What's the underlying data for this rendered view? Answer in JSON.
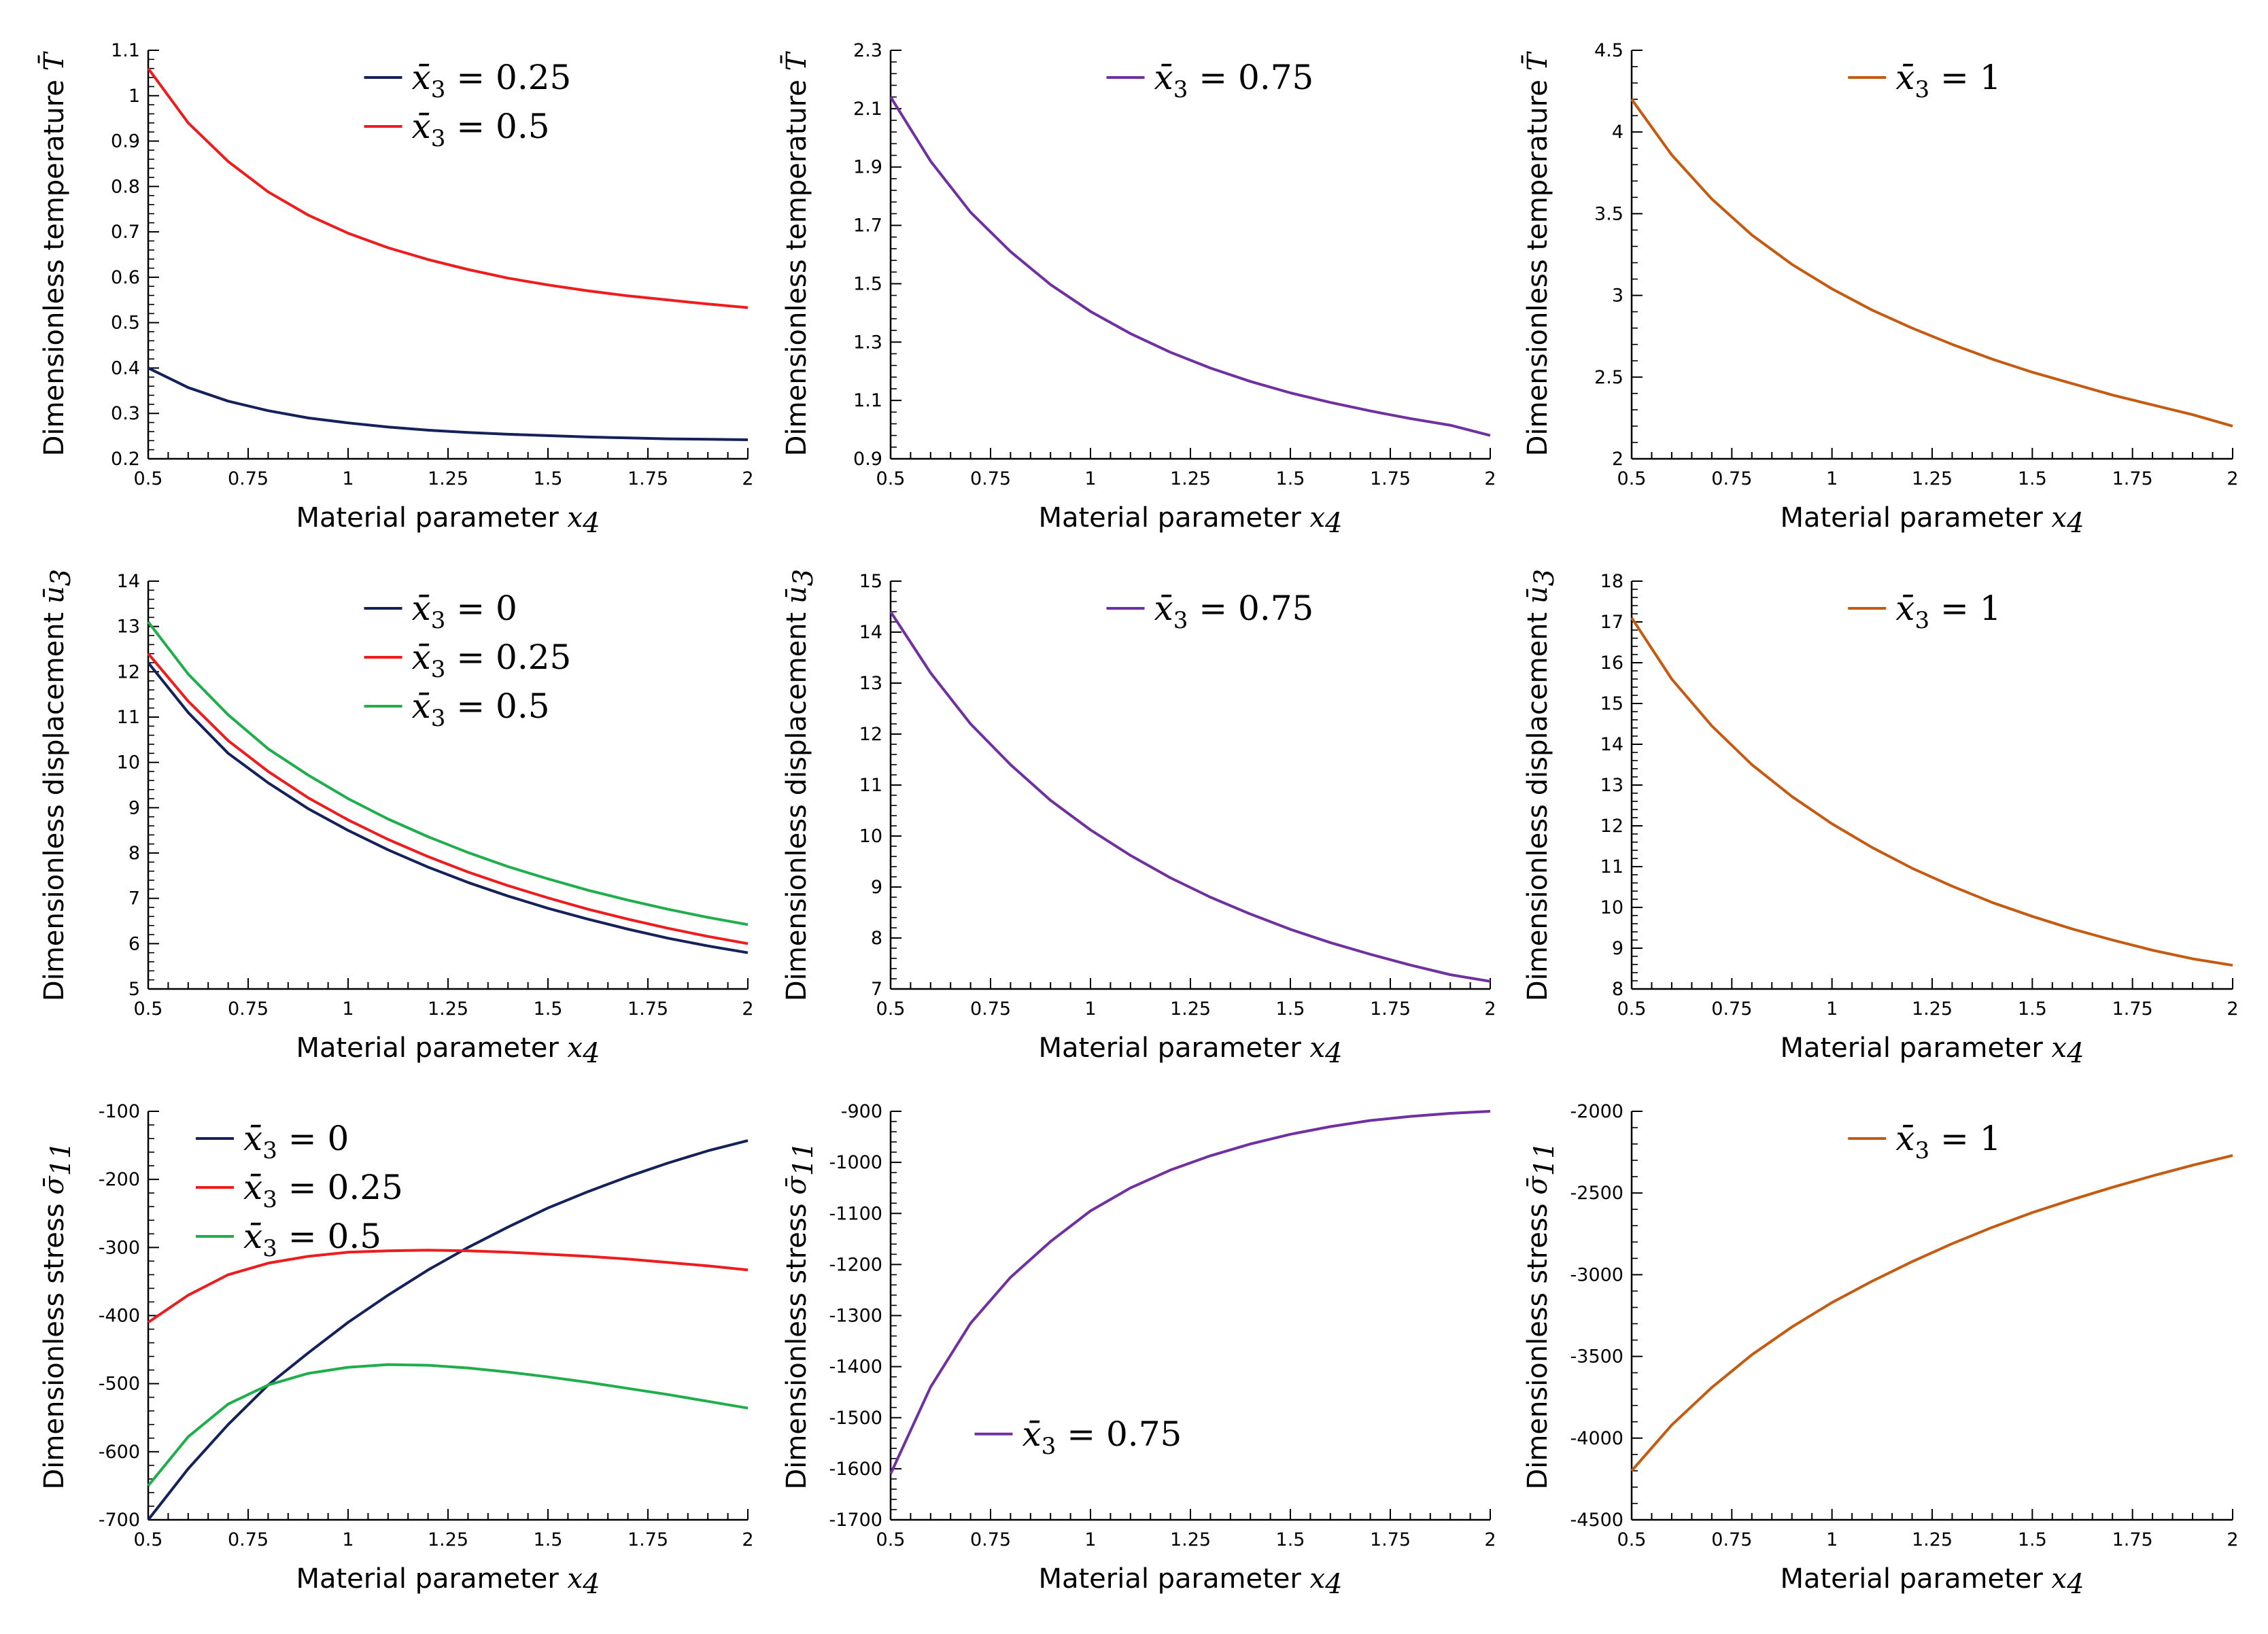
{
  "colors": {
    "navy": "#14215b",
    "red": "#ee1c1c",
    "green": "#1fae4b",
    "purple": "#7030a0",
    "orange": "#c55a11"
  },
  "xlabel": "Material parameter",
  "xsym": "x",
  "xsub": "4",
  "charts": [
    {
      "type": "line",
      "ylabel": "Dimensionless temperature",
      "ysym": "T̄",
      "ysub": "",
      "ylim": [
        0.2,
        1.1
      ],
      "yticks": [
        "0.2",
        "0.3",
        "0.4",
        "0.5",
        "0.6",
        "0.7",
        "0.8",
        "0.9",
        "1",
        "1.1"
      ],
      "xlim": [
        0.5,
        2
      ],
      "xticks": [
        "0.5",
        "0.75",
        "1",
        "1.25",
        "1.5",
        "1.75",
        "2"
      ],
      "x": [
        0.5,
        0.6,
        0.7,
        0.8,
        0.9,
        1.0,
        1.1,
        1.2,
        1.3,
        1.4,
        1.5,
        1.6,
        1.7,
        1.8,
        1.9,
        2.0
      ],
      "series": [
        {
          "name": "x̄₃ = 0.25",
          "label_var": "x̄",
          "label_sub": "3",
          "label_val": " = 0.25",
          "color": "#14215b",
          "values": [
            0.4,
            0.357,
            0.327,
            0.306,
            0.29,
            0.279,
            0.27,
            0.263,
            0.258,
            0.254,
            0.251,
            0.248,
            0.246,
            0.244,
            0.243,
            0.242
          ]
        },
        {
          "name": "x̄₃ = 0.5",
          "label_var": "x̄",
          "label_sub": "3",
          "label_val": " = 0.5",
          "color": "#ee1c1c",
          "values": [
            1.06,
            0.94,
            0.855,
            0.788,
            0.737,
            0.697,
            0.665,
            0.639,
            0.617,
            0.598,
            0.583,
            0.57,
            0.559,
            0.55,
            0.541,
            0.533
          ]
        }
      ],
      "legend": "top-center"
    },
    {
      "type": "line",
      "ylabel": "Dimensionless temperature",
      "ysym": "T̄",
      "ysub": "",
      "ylim": [
        0.9,
        2.3
      ],
      "yticks": [
        "0.9",
        "1.1",
        "1.3",
        "1.5",
        "1.7",
        "1.9",
        "2.1",
        "2.3"
      ],
      "xlim": [
        0.5,
        2
      ],
      "xticks": [
        "0.5",
        "0.75",
        "1",
        "1.25",
        "1.5",
        "1.75",
        "2"
      ],
      "x": [
        0.5,
        0.6,
        0.7,
        0.8,
        0.9,
        1.0,
        1.1,
        1.2,
        1.3,
        1.4,
        1.5,
        1.6,
        1.7,
        1.8,
        1.9,
        2.0
      ],
      "series": [
        {
          "name": "x̄₃ = 0.75",
          "label_var": "x̄",
          "label_sub": "3",
          "label_val": " = 0.75",
          "color": "#7030a0",
          "values": [
            2.14,
            1.92,
            1.745,
            1.61,
            1.497,
            1.405,
            1.329,
            1.265,
            1.211,
            1.165,
            1.126,
            1.093,
            1.064,
            1.038,
            1.015,
            0.98
          ]
        }
      ],
      "legend": "top-center"
    },
    {
      "type": "line",
      "ylabel": "Dimensionless temperature",
      "ysym": "T̄",
      "ysub": "",
      "ylim": [
        2,
        4.5
      ],
      "yticks": [
        "2",
        "2.5",
        "3",
        "3.5",
        "4",
        "4.5"
      ],
      "xlim": [
        0.5,
        2
      ],
      "xticks": [
        "0.5",
        "0.75",
        "1",
        "1.25",
        "1.5",
        "1.75",
        "2"
      ],
      "x": [
        0.5,
        0.6,
        0.7,
        0.8,
        0.9,
        1.0,
        1.1,
        1.2,
        1.3,
        1.4,
        1.5,
        1.6,
        1.7,
        1.8,
        1.9,
        2.0
      ],
      "series": [
        {
          "name": "x̄₃ = 1",
          "label_var": "x̄",
          "label_sub": "3",
          "label_val": " = 1",
          "color": "#c55a11",
          "values": [
            4.2,
            3.86,
            3.59,
            3.37,
            3.19,
            3.04,
            2.91,
            2.8,
            2.7,
            2.61,
            2.53,
            2.46,
            2.39,
            2.33,
            2.27,
            2.2
          ]
        }
      ],
      "legend": "top-center"
    },
    {
      "type": "line",
      "ylabel": "Dimensionless displacement",
      "ysym": "ū",
      "ysub": "3",
      "ylim": [
        5,
        14
      ],
      "yticks": [
        "5",
        "6",
        "7",
        "8",
        "9",
        "10",
        "11",
        "12",
        "13",
        "14"
      ],
      "xlim": [
        0.5,
        2
      ],
      "xticks": [
        "0.5",
        "0.75",
        "1",
        "1.25",
        "1.5",
        "1.75",
        "2"
      ],
      "x": [
        0.5,
        0.6,
        0.7,
        0.8,
        0.9,
        1.0,
        1.1,
        1.2,
        1.3,
        1.4,
        1.5,
        1.6,
        1.7,
        1.8,
        1.9,
        2.0
      ],
      "series": [
        {
          "name": "x̄₃ = 0",
          "label_var": "x̄",
          "label_sub": "3",
          "label_val": " = 0",
          "color": "#14215b",
          "values": [
            12.2,
            11.1,
            10.2,
            9.55,
            8.98,
            8.5,
            8.07,
            7.69,
            7.35,
            7.05,
            6.78,
            6.54,
            6.32,
            6.12,
            5.95,
            5.8
          ]
        },
        {
          "name": "x̄₃ = 0.25",
          "label_var": "x̄",
          "label_sub": "3",
          "label_val": " = 0.25",
          "color": "#ee1c1c",
          "values": [
            12.4,
            11.35,
            10.48,
            9.8,
            9.22,
            8.73,
            8.3,
            7.92,
            7.58,
            7.28,
            7.01,
            6.76,
            6.54,
            6.34,
            6.16,
            6.0
          ]
        },
        {
          "name": "x̄₃ = 0.5",
          "label_var": "x̄",
          "label_sub": "3",
          "label_val": " = 0.5",
          "color": "#1fae4b",
          "values": [
            13.1,
            11.95,
            11.05,
            10.3,
            9.72,
            9.2,
            8.75,
            8.36,
            8.01,
            7.7,
            7.43,
            7.18,
            6.96,
            6.76,
            6.58,
            6.42
          ]
        }
      ],
      "legend": "top-center"
    },
    {
      "type": "line",
      "ylabel": "Dimensionless displacement",
      "ysym": "ū",
      "ysub": "3",
      "ylim": [
        7,
        15
      ],
      "yticks": [
        "7",
        "8",
        "9",
        "10",
        "11",
        "12",
        "13",
        "14",
        "15"
      ],
      "xlim": [
        0.5,
        2
      ],
      "xticks": [
        "0.5",
        "0.75",
        "1",
        "1.25",
        "1.5",
        "1.75",
        "2"
      ],
      "x": [
        0.5,
        0.6,
        0.7,
        0.8,
        0.9,
        1.0,
        1.1,
        1.2,
        1.3,
        1.4,
        1.5,
        1.6,
        1.7,
        1.8,
        1.9,
        2.0
      ],
      "series": [
        {
          "name": "x̄₃ = 0.75",
          "label_var": "x̄",
          "label_sub": "3",
          "label_val": " = 0.75",
          "color": "#7030a0",
          "values": [
            14.4,
            13.2,
            12.2,
            11.4,
            10.7,
            10.12,
            9.62,
            9.18,
            8.8,
            8.47,
            8.17,
            7.91,
            7.68,
            7.47,
            7.28,
            7.15
          ]
        }
      ],
      "legend": "top-center"
    },
    {
      "type": "line",
      "ylabel": "Dimensionless displacement",
      "ysym": "ū",
      "ysub": "3",
      "ylim": [
        8,
        18
      ],
      "yticks": [
        "8",
        "9",
        "10",
        "11",
        "12",
        "13",
        "14",
        "15",
        "16",
        "17",
        "18"
      ],
      "xlim": [
        0.5,
        2
      ],
      "xticks": [
        "0.5",
        "0.75",
        "1",
        "1.25",
        "1.5",
        "1.75",
        "2"
      ],
      "x": [
        0.5,
        0.6,
        0.7,
        0.8,
        0.9,
        1.0,
        1.1,
        1.2,
        1.3,
        1.4,
        1.5,
        1.6,
        1.7,
        1.8,
        1.9,
        2.0
      ],
      "series": [
        {
          "name": "x̄₃ = 1",
          "label_var": "x̄",
          "label_sub": "3",
          "label_val": " = 1",
          "color": "#c55a11",
          "values": [
            17.1,
            15.6,
            14.45,
            13.5,
            12.72,
            12.05,
            11.47,
            10.96,
            10.52,
            10.12,
            9.78,
            9.47,
            9.2,
            8.95,
            8.74,
            8.58
          ]
        }
      ],
      "legend": "top-center"
    },
    {
      "type": "line",
      "ylabel": "Dimensionless stress",
      "ysym": "σ̄",
      "ysub": "11",
      "ylim": [
        -700,
        -100
      ],
      "yticks": [
        "-700",
        "-600",
        "-500",
        "-400",
        "-300",
        "-200",
        "-100"
      ],
      "xlim": [
        0.5,
        2
      ],
      "xticks": [
        "0.5",
        "0.75",
        "1",
        "1.25",
        "1.5",
        "1.75",
        "2"
      ],
      "x": [
        0.5,
        0.6,
        0.7,
        0.8,
        0.9,
        1.0,
        1.1,
        1.2,
        1.3,
        1.4,
        1.5,
        1.6,
        1.7,
        1.8,
        1.9,
        2.0
      ],
      "series": [
        {
          "name": "x̄₃ = 0",
          "label_var": "x̄",
          "label_sub": "3",
          "label_val": " = 0",
          "color": "#14215b",
          "values": [
            -700,
            -625,
            -560,
            -502,
            -455,
            -410,
            -370,
            -333,
            -300,
            -270,
            -242,
            -218,
            -196,
            -176,
            -158,
            -143
          ]
        },
        {
          "name": "x̄₃ = 0.25",
          "label_var": "x̄",
          "label_sub": "3",
          "label_val": " = 0.25",
          "color": "#ee1c1c",
          "values": [
            -410,
            -370,
            -340,
            -323,
            -313,
            -307,
            -305,
            -304,
            -305,
            -307,
            -310,
            -313,
            -317,
            -322,
            -327,
            -333
          ]
        },
        {
          "name": "x̄₃ = 0.5",
          "label_var": "x̄",
          "label_sub": "3",
          "label_val": " = 0.5",
          "color": "#1fae4b",
          "values": [
            -650,
            -578,
            -530,
            -502,
            -485,
            -476,
            -472,
            -473,
            -477,
            -483,
            -490,
            -498,
            -507,
            -516,
            -526,
            -536
          ]
        }
      ],
      "legend": "top-left"
    },
    {
      "type": "line",
      "ylabel": "Dimensionless stress",
      "ysym": "σ̄",
      "ysub": "11",
      "ylim": [
        -1700,
        -900
      ],
      "yticks": [
        "-1700",
        "-1600",
        "-1500",
        "-1400",
        "-1300",
        "-1200",
        "-1100",
        "-1000",
        "-900"
      ],
      "xlim": [
        0.5,
        2
      ],
      "xticks": [
        "0.5",
        "0.75",
        "1",
        "1.25",
        "1.5",
        "1.75",
        "2"
      ],
      "x": [
        0.5,
        0.6,
        0.7,
        0.8,
        0.9,
        1.0,
        1.1,
        1.2,
        1.3,
        1.4,
        1.5,
        1.6,
        1.7,
        1.8,
        1.9,
        2.0
      ],
      "series": [
        {
          "name": "x̄₃ = 0.75",
          "label_var": "x̄",
          "label_sub": "3",
          "label_val": " = 0.75",
          "color": "#7030a0",
          "values": [
            -1610,
            -1440,
            -1315,
            -1225,
            -1155,
            -1095,
            -1050,
            -1015,
            -987,
            -964,
            -945,
            -930,
            -918,
            -910,
            -904,
            -900
          ]
        }
      ],
      "legend": "bottom-center"
    },
    {
      "type": "line",
      "ylabel": "Dimensionless stress",
      "ysym": "σ̄",
      "ysub": "11",
      "ylim": [
        -4500,
        -2000
      ],
      "yticks": [
        "-4500",
        "-4000",
        "-3500",
        "-3000",
        "-2500",
        "-2000"
      ],
      "xlim": [
        0.5,
        2
      ],
      "xticks": [
        "0.5",
        "0.75",
        "1",
        "1.25",
        "1.5",
        "1.75",
        "2"
      ],
      "x": [
        0.5,
        0.6,
        0.7,
        0.8,
        0.9,
        1.0,
        1.1,
        1.2,
        1.3,
        1.4,
        1.5,
        1.6,
        1.7,
        1.8,
        1.9,
        2.0
      ],
      "series": [
        {
          "name": "x̄₃ = 1",
          "label_var": "x̄",
          "label_sub": "3",
          "label_val": " = 1",
          "color": "#c55a11",
          "values": [
            -4200,
            -3920,
            -3690,
            -3490,
            -3320,
            -3170,
            -3040,
            -2920,
            -2810,
            -2710,
            -2620,
            -2540,
            -2465,
            -2395,
            -2330,
            -2270
          ]
        }
      ],
      "legend": "top-center"
    }
  ]
}
